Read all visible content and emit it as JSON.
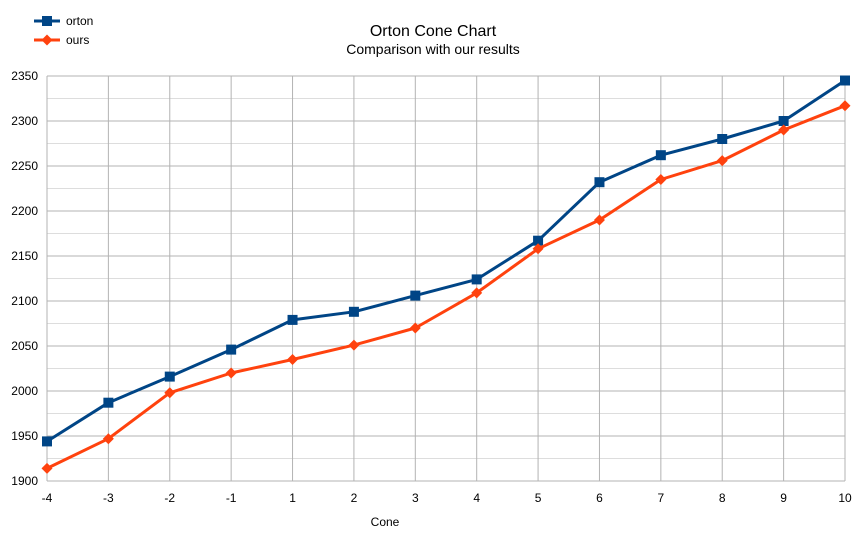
{
  "chart_data": {
    "type": "line",
    "title": "Orton Cone Chart",
    "subtitle": "Comparison with our results",
    "xlabel": "Cone",
    "ylabel": "",
    "x": [
      -4,
      -3,
      -2,
      -1,
      1,
      2,
      3,
      4,
      5,
      6,
      7,
      8,
      9,
      10
    ],
    "ylim": [
      1900,
      2350
    ],
    "yticks": [
      1900,
      1950,
      2000,
      2050,
      2100,
      2150,
      2200,
      2250,
      2300,
      2350
    ],
    "grid": true,
    "legend_position": "top-left",
    "series": [
      {
        "name": "orton",
        "color": "#004586",
        "marker": "square",
        "values": [
          1944,
          1987,
          2016,
          2046,
          2079,
          2088,
          2106,
          2124,
          2167,
          2232,
          2262,
          2280,
          2300,
          2345
        ]
      },
      {
        "name": "ours",
        "color": "#ff420e",
        "marker": "diamond",
        "values": [
          1914,
          1947,
          1998,
          2020,
          2035,
          2051,
          2070,
          2109,
          2158,
          2190,
          2235,
          2256,
          2290,
          2317
        ]
      }
    ]
  }
}
